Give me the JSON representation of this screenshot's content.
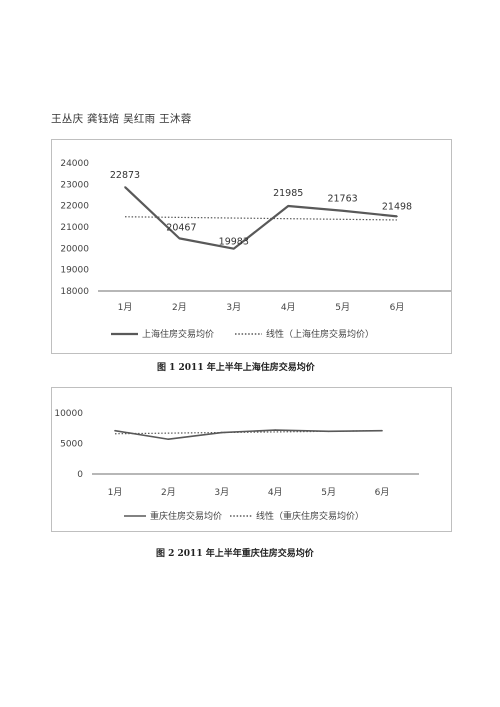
{
  "authors": "王丛庆  龚钰焙  吴红雨  王沐蓉",
  "captions": {
    "fig1": "图 1  2011 年上半年上海住房交易均价",
    "fig2": "图 2  2011 年上半年重庆住房交易均价"
  },
  "chart_data": [
    {
      "type": "line",
      "categories": [
        "1月",
        "2月",
        "3月",
        "4月",
        "5月",
        "6月"
      ],
      "series": [
        {
          "name": "上海住房交易均价",
          "values": [
            22873,
            20467,
            19983,
            21985,
            21763,
            21498
          ],
          "color": "#595959",
          "style": "solid"
        },
        {
          "name": "线性（上海住房交易均价）",
          "values": [
            21480,
            21450,
            21420,
            21390,
            21360,
            21330
          ],
          "color": "#595959",
          "style": "dotted"
        }
      ],
      "data_labels": [
        "22873",
        "20467",
        "19983",
        "21985",
        "21763",
        "21498"
      ],
      "yticks": [
        "24000",
        "23000",
        "22000",
        "21000",
        "20000",
        "19000",
        "18000"
      ],
      "ylim": [
        18000,
        24000
      ],
      "legend_position": "bottom",
      "grid": false
    },
    {
      "type": "line",
      "categories": [
        "1月",
        "2月",
        "3月",
        "4月",
        "5月",
        "6月"
      ],
      "series": [
        {
          "name": "重庆住房交易均价",
          "values": [
            7100,
            5700,
            6800,
            7200,
            7000,
            7100
          ],
          "color": "#595959",
          "style": "solid"
        },
        {
          "name": "线性（重庆住房交易均价）",
          "values": [
            6600,
            6700,
            6800,
            6900,
            7000,
            7100
          ],
          "color": "#595959",
          "style": "dotted"
        }
      ],
      "yticks": [
        "10000",
        "5000",
        "0"
      ],
      "ylim": [
        0,
        10000
      ],
      "legend_position": "bottom",
      "grid": false
    }
  ]
}
